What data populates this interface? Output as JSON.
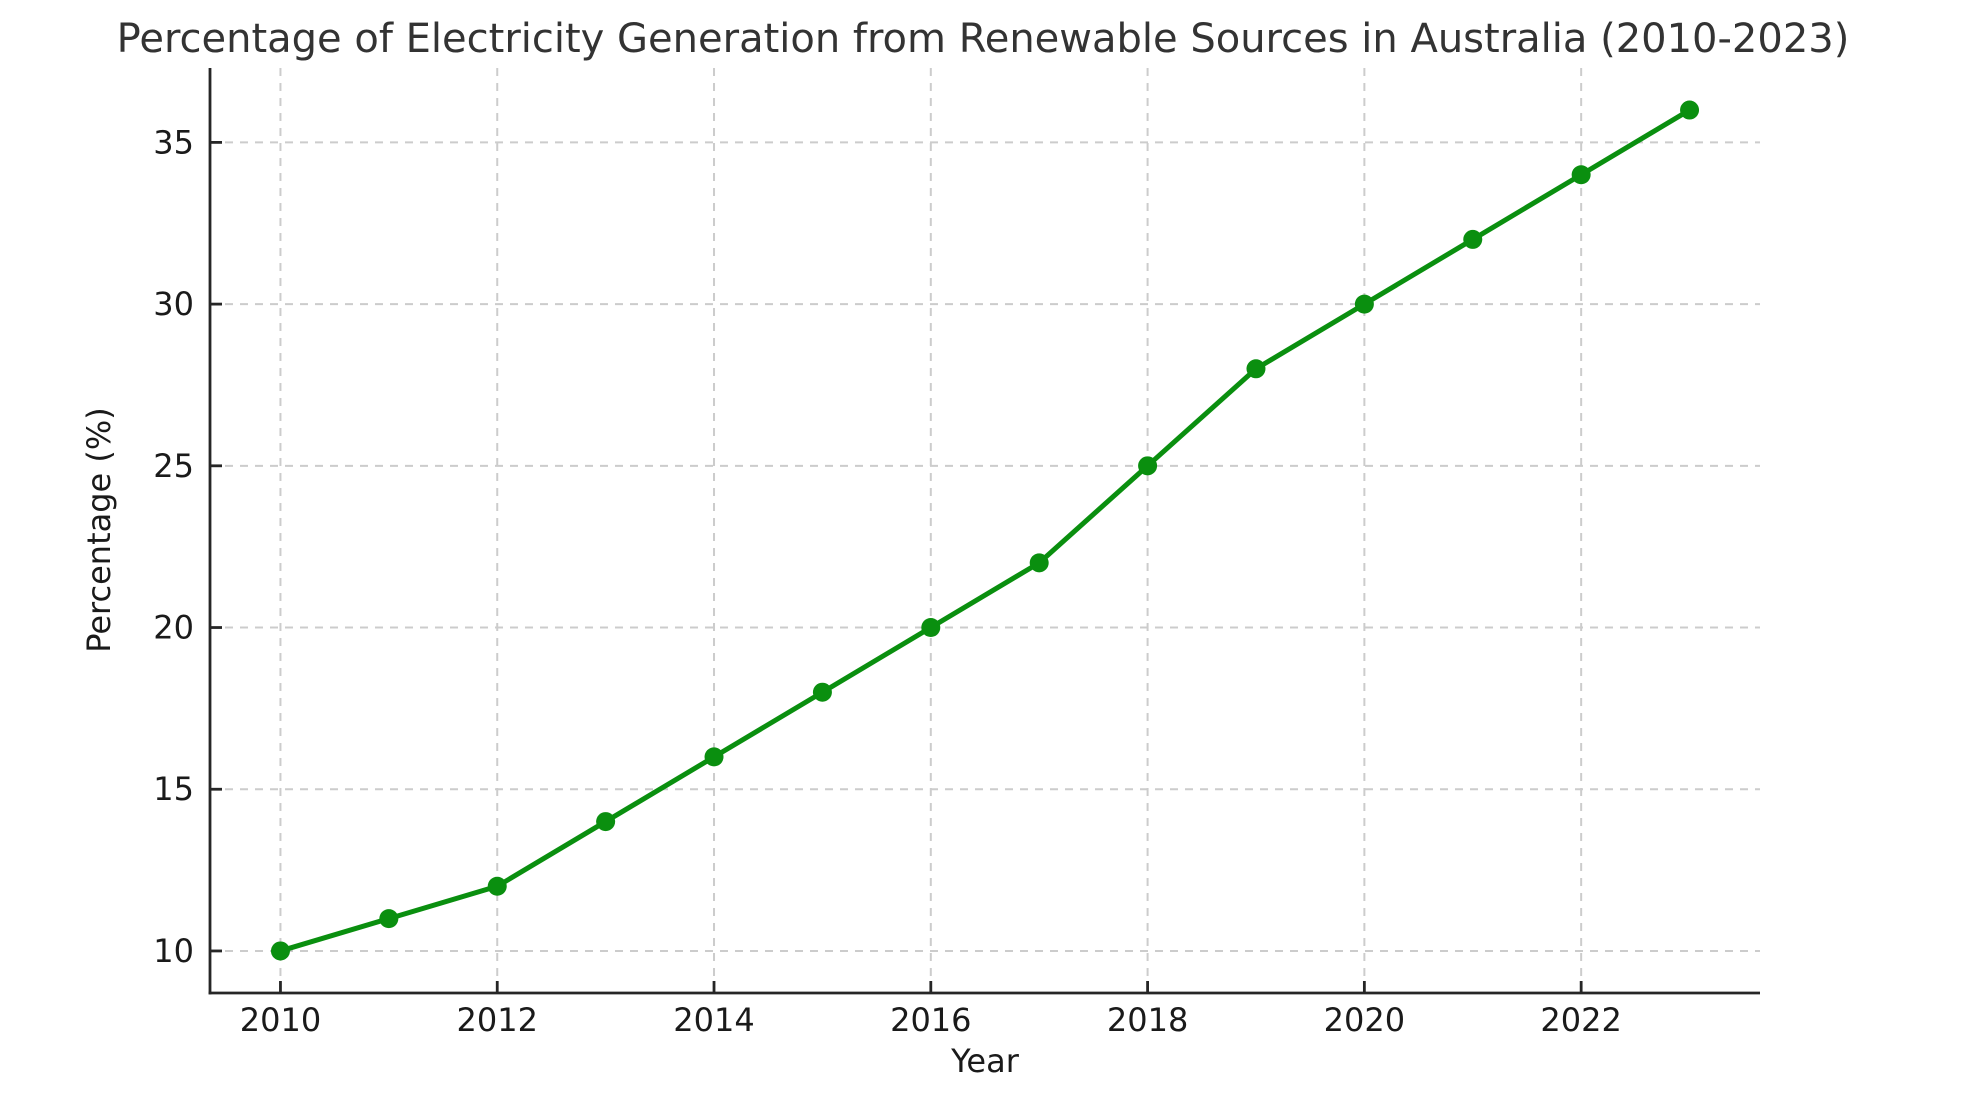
{
  "chart_data": {
    "type": "line",
    "title": "Percentage of Electricity Generation from Renewable Sources in Australia (2010-2023)",
    "xlabel": "Year",
    "ylabel": "Percentage (%)",
    "x": [
      2010,
      2011,
      2012,
      2013,
      2014,
      2015,
      2016,
      2017,
      2018,
      2019,
      2020,
      2021,
      2022,
      2023
    ],
    "values": [
      10,
      11,
      12,
      14,
      16,
      18,
      20,
      22,
      25,
      28,
      30,
      32,
      34,
      36
    ],
    "x_ticks": [
      2010,
      2012,
      2014,
      2016,
      2018,
      2020,
      2022
    ],
    "y_ticks": [
      10,
      15,
      20,
      25,
      30,
      35
    ],
    "xlim": [
      2009.35,
      2023.65
    ],
    "ylim": [
      8.7,
      37.3
    ],
    "grid": true,
    "grid_style": "dashed",
    "legend_position": "none",
    "marker": "circle",
    "colors": {
      "line": "#0a8f0f",
      "marker": "#0a8f0f",
      "grid": "#cccccc",
      "spine": "#262626",
      "tick_text": "#1a1a1a",
      "title_text": "#333333"
    }
  }
}
